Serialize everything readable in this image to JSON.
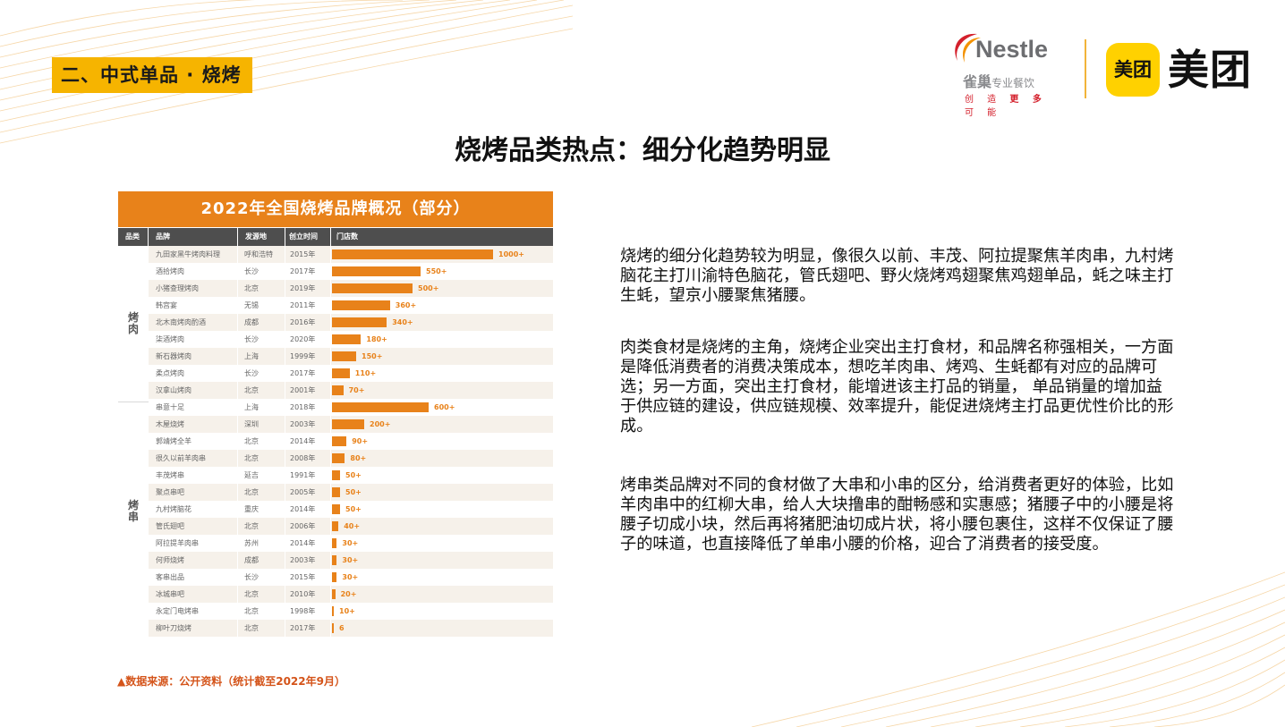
{
  "section_tag": "二、中式单品 · 烧烤",
  "logos": {
    "nestle": {
      "word": "Nestle",
      "cn_brand": "雀巢",
      "cn_tail": "专业餐饮",
      "slogan_a": "创 造 ",
      "slogan_b": "更 多",
      "slogan_c": " 可 能"
    },
    "meituan": {
      "badge": "美团",
      "word": "美团"
    }
  },
  "title": "烧烤品类热点：细分化趋势明显",
  "table": {
    "banner": "2022年全国烧烤品牌概况（部分）",
    "headers": {
      "category": "品类",
      "brand": "品牌",
      "origin": "发源地",
      "founded": "创立时间",
      "stores": "门店数"
    },
    "categories": [
      {
        "label_1": "烤",
        "label_2": "肉"
      },
      {
        "label_1": "烤",
        "label_2": "串"
      }
    ],
    "rows": [
      {
        "brand": "九田家黑牛烤肉料理",
        "origin": "呼和浩特",
        "year": "2015年",
        "stores": 1000,
        "label": "1000+",
        "group": 0
      },
      {
        "brand": "酒拾烤肉",
        "origin": "长沙",
        "year": "2017年",
        "stores": 550,
        "label": "550+",
        "group": 0
      },
      {
        "brand": "小猪查理烤肉",
        "origin": "北京",
        "year": "2019年",
        "stores": 500,
        "label": "500+",
        "group": 0
      },
      {
        "brand": "韩宫宴",
        "origin": "无锡",
        "year": "2011年",
        "stores": 360,
        "label": "360+",
        "group": 0
      },
      {
        "brand": "北木南烤肉酌酒",
        "origin": "成都",
        "year": "2016年",
        "stores": 340,
        "label": "340+",
        "group": 0
      },
      {
        "brand": "柒酒烤肉",
        "origin": "长沙",
        "year": "2020年",
        "stores": 180,
        "label": "180+",
        "group": 0
      },
      {
        "brand": "新石器烤肉",
        "origin": "上海",
        "year": "1999年",
        "stores": 150,
        "label": "150+",
        "group": 0
      },
      {
        "brand": "柔点烤肉",
        "origin": "长沙",
        "year": "2017年",
        "stores": 110,
        "label": "110+",
        "group": 0
      },
      {
        "brand": "汉拿山烤肉",
        "origin": "北京",
        "year": "2001年",
        "stores": 70,
        "label": "70+",
        "group": 0
      },
      {
        "brand": "串意十足",
        "origin": "上海",
        "year": "2018年",
        "stores": 600,
        "label": "600+",
        "group": 1
      },
      {
        "brand": "木屋烧烤",
        "origin": "深圳",
        "year": "2003年",
        "stores": 200,
        "label": "200+",
        "group": 1
      },
      {
        "brand": "郭靖烤全羊",
        "origin": "北京",
        "year": "2014年",
        "stores": 90,
        "label": "90+",
        "group": 1
      },
      {
        "brand": "很久以前羊肉串",
        "origin": "北京",
        "year": "2008年",
        "stores": 80,
        "label": "80+",
        "group": 1
      },
      {
        "brand": "丰茂烤串",
        "origin": "延吉",
        "year": "1991年",
        "stores": 50,
        "label": "50+",
        "group": 1
      },
      {
        "brand": "聚点串吧",
        "origin": "北京",
        "year": "2005年",
        "stores": 50,
        "label": "50+",
        "group": 1
      },
      {
        "brand": "九村烤脑花",
        "origin": "重庆",
        "year": "2014年",
        "stores": 50,
        "label": "50+",
        "group": 1
      },
      {
        "brand": "管氏翅吧",
        "origin": "北京",
        "year": "2006年",
        "stores": 40,
        "label": "40+",
        "group": 1
      },
      {
        "brand": "阿拉提羊肉串",
        "origin": "苏州",
        "year": "2014年",
        "stores": 30,
        "label": "30+",
        "group": 1
      },
      {
        "brand": "何师烧烤",
        "origin": "成都",
        "year": "2003年",
        "stores": 30,
        "label": "30+",
        "group": 1
      },
      {
        "brand": "客串出品",
        "origin": "长沙",
        "year": "2015年",
        "stores": 30,
        "label": "30+",
        "group": 1
      },
      {
        "brand": "冰城串吧",
        "origin": "北京",
        "year": "2010年",
        "stores": 20,
        "label": "20+",
        "group": 1
      },
      {
        "brand": "永定门电烤串",
        "origin": "北京",
        "year": "1998年",
        "stores": 10,
        "label": "10+",
        "group": 1
      },
      {
        "brand": "柳叶刀烧烤",
        "origin": "北京",
        "year": "2017年",
        "stores": 6,
        "label": "6",
        "group": 1
      }
    ]
  },
  "source_note": "▲数据来源：公开资料（统计截至2022年9月）",
  "paragraphs": [
    "烧烤的细分化趋势较为明显，像很久以前、丰茂、阿拉提聚焦羊肉串，九村烤脑花主打川渝特色脑花，管氏翅吧、野火烧烤鸡翅聚焦鸡翅单品，蚝之味主打生蚝，望京小腰聚焦猪腰。",
    "肉类食材是烧烤的主角，烧烤企业突出主打食材，和品牌名称强相关，一方面是降低消费者的消费决策成本，想吃羊肉串、烤鸡、生蚝都有对应的品牌可选；另一方面，突出主打食材，能增进该主打品的销量， 单品销量的增加益于供应链的建设，供应链规模、效率提升，能促进烧烤主打品更优性价比的形成。",
    "烤串类品牌对不同的食材做了大串和小串的区分，给消费者更好的体验，比如羊肉串中的红柳大串，给人大块撸串的酣畅感和实惠感；猪腰子中的小腰是将腰子切成小块，然后再将猪肥油切成片状，将小腰包裹住，这样不仅保证了腰子的味道，也直接降低了单串小腰的价格，迎合了消费者的接受度。"
  ],
  "chart_data": {
    "type": "bar",
    "title": "2022年全国烧烤品牌概况（部分）",
    "categories": [
      "九田家黑牛烤肉料理",
      "酒拾烤肉",
      "小猪查理烤肉",
      "韩宫宴",
      "北木南烤肉酌酒",
      "柒酒烤肉",
      "新石器烤肉",
      "柔点烤肉",
      "汉拿山烤肉",
      "串意十足",
      "木屋烧烤",
      "郭靖烤全羊",
      "很久以前羊肉串",
      "丰茂烤串",
      "聚点串吧",
      "九村烤脑花",
      "管氏翅吧",
      "阿拉提羊肉串",
      "何师烧烤",
      "客串出品",
      "冰城串吧",
      "永定门电烤串",
      "柳叶刀烧烤"
    ],
    "series": [
      {
        "name": "门店数",
        "values": [
          1000,
          550,
          500,
          360,
          340,
          180,
          150,
          110,
          70,
          600,
          200,
          90,
          80,
          50,
          50,
          50,
          40,
          30,
          30,
          30,
          20,
          10,
          6
        ]
      }
    ],
    "xlabel": "",
    "ylabel": "",
    "orientation": "horizontal"
  },
  "colors": {
    "accent": "#e8821a",
    "tag": "#f6b400",
    "header": "#4e4e4e",
    "meituan": "#ffd100",
    "source": "#d4541a"
  }
}
